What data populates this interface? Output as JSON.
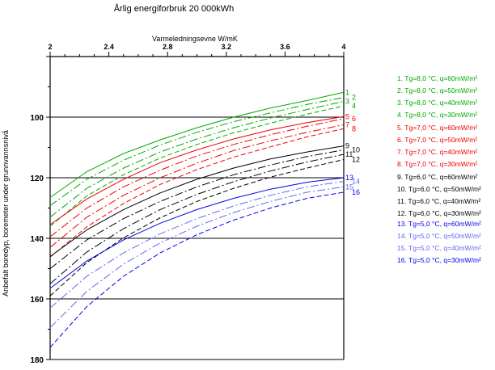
{
  "chart_data": {
    "type": "line",
    "title": "Årlig energiforbruk 20 000kWh",
    "xlabel": "Varmeledningsevne W/mK",
    "ylabel": "Anbefalt boredyp, boremeter under grunnvannsnivå",
    "x_axis_position": "top",
    "y_axis_inverted": true,
    "xlim": [
      2,
      4
    ],
    "ylim": [
      80,
      180
    ],
    "x_ticks": [
      "2",
      "2.4",
      "2.8",
      "3.2",
      "3.6",
      "4"
    ],
    "y_ticks": [
      "100",
      "120",
      "140",
      "160",
      "180"
    ],
    "x_tick_values": [
      2,
      2.4,
      2.8,
      3.2,
      3.6,
      4
    ],
    "y_tick_values": [
      100,
      120,
      140,
      160,
      180
    ],
    "y_gridlines": [
      100,
      120,
      140,
      160,
      180
    ],
    "grid": "horizontal",
    "legend_position": "right",
    "x": [
      2.0,
      2.25,
      2.5,
      2.75,
      3.0,
      3.25,
      3.5,
      3.75,
      4.0
    ],
    "series": [
      {
        "name": "1",
        "legend": "1.  Tg=8,0 °C, q=60mW/m²",
        "color": "#00aa00",
        "dash": "solid",
        "values": [
          126.5,
          118,
          112,
          107.5,
          103.5,
          100,
          97,
          94.5,
          91.8
        ]
      },
      {
        "name": "2",
        "legend": "2.  Tg=8,0 °C, q=50mW/m²",
        "color": "#00aa00",
        "dash": "dashdot",
        "values": [
          129.2,
          120.5,
          114.2,
          109.2,
          105,
          101.5,
          98.6,
          95.8,
          93.5
        ]
      },
      {
        "name": "3",
        "legend": "3.  Tg=8,0 °C, q=40mW/m²",
        "color": "#00aa00",
        "dash": "dashdot",
        "values": [
          133,
          123.5,
          116.8,
          111.5,
          107.2,
          103.5,
          100.3,
          97.5,
          94.8
        ]
      },
      {
        "name": "4",
        "legend": "4.  Tg=8,0 °C, q=30mW/m²",
        "color": "#00aa00",
        "dash": "dashed",
        "values": [
          136,
          126,
          119,
          113.5,
          109,
          105.2,
          102,
          99,
          96.3
        ]
      },
      {
        "name": "5",
        "legend": "5.  Tg=7,0 °C, q=60mW/m²",
        "color": "#ee0000",
        "dash": "solid",
        "values": [
          135.5,
          127,
          120.5,
          115,
          110.8,
          107.2,
          104.2,
          101.8,
          99.8
        ]
      },
      {
        "name": "6",
        "legend": "6.  Tg=7,0 °C, q=50mW/m²",
        "color": "#ee0000",
        "dash": "dashdot",
        "values": [
          139.5,
          130,
          123,
          117.5,
          112.8,
          109,
          105.8,
          103,
          100.5
        ]
      },
      {
        "name": "7",
        "legend": "7.  Tg=7,0 °C, q=40mW/m²",
        "color": "#ee0000",
        "dash": "dashdot",
        "values": [
          143,
          133,
          125.8,
          120,
          115.2,
          111,
          107.8,
          105,
          102.5
        ]
      },
      {
        "name": "8",
        "legend": "8.  Tg=7,0 °C, q=30mW/m²",
        "color": "#ee0000",
        "dash": "dashed",
        "values": [
          146.2,
          136.2,
          128.5,
          122.2,
          117.3,
          113.2,
          109.8,
          106.5,
          103.8
        ]
      },
      {
        "name": "9",
        "legend": "9.  Tg=6,0 °C, q=60mW/m²",
        "color": "#000000",
        "dash": "solid",
        "values": [
          146,
          137.2,
          130.5,
          125,
          120.5,
          116.8,
          113.8,
          111.5,
          109.5
        ]
      },
      {
        "name": "10",
        "legend": "10.  Tg=6,0 °C, q=50mW/m²",
        "color": "#000000",
        "dash": "dashdot",
        "values": [
          150,
          140.5,
          133.5,
          127.8,
          123,
          119,
          115.8,
          113,
          110.8
        ]
      },
      {
        "name": "11",
        "legend": "11.  Tg=6,0 °C, q=40mW/m²",
        "color": "#000000",
        "dash": "dashdot",
        "values": [
          155,
          144.5,
          136.8,
          130.5,
          125.5,
          121.3,
          117.8,
          114.8,
          112.3
        ]
      },
      {
        "name": "12",
        "legend": "12.  Tg=6,0 °C, q=30mW/m²",
        "color": "#000000",
        "dash": "dashed",
        "values": [
          159,
          148,
          139.8,
          133.2,
          127.8,
          123.5,
          119.8,
          116.8,
          114
        ]
      },
      {
        "name": "13",
        "legend": "13.  Tg=5,0 °C, q=60mW/m²",
        "color": "#0000ee",
        "dash": "solid",
        "values": [
          156.5,
          147.5,
          140.5,
          135,
          130.5,
          126.8,
          123.8,
          121.5,
          120
        ]
      },
      {
        "name": "14",
        "legend": "14.  Tg=5,0 °C, q=50mW/m²",
        "color": "#6666ee",
        "dash": "dashdot",
        "values": [
          163,
          152.5,
          144.8,
          138.5,
          133.5,
          129.3,
          125.8,
          123,
          121.2
        ]
      },
      {
        "name": "15",
        "legend": "15.  Tg=5,0 °C, q=40mW/m²",
        "color": "#6666ee",
        "dash": "dashdot",
        "values": [
          169.5,
          157.5,
          148.5,
          141.5,
          136,
          131.5,
          127.8,
          124.8,
          123
        ]
      },
      {
        "name": "16",
        "legend": "16.  Tg=5,0 °C, q=30mW/m²",
        "color": "#0000ee",
        "dash": "dashed",
        "values": [
          176,
          162.5,
          152.5,
          144.8,
          138.8,
          134,
          130,
          126.8,
          124.8
        ]
      }
    ]
  }
}
